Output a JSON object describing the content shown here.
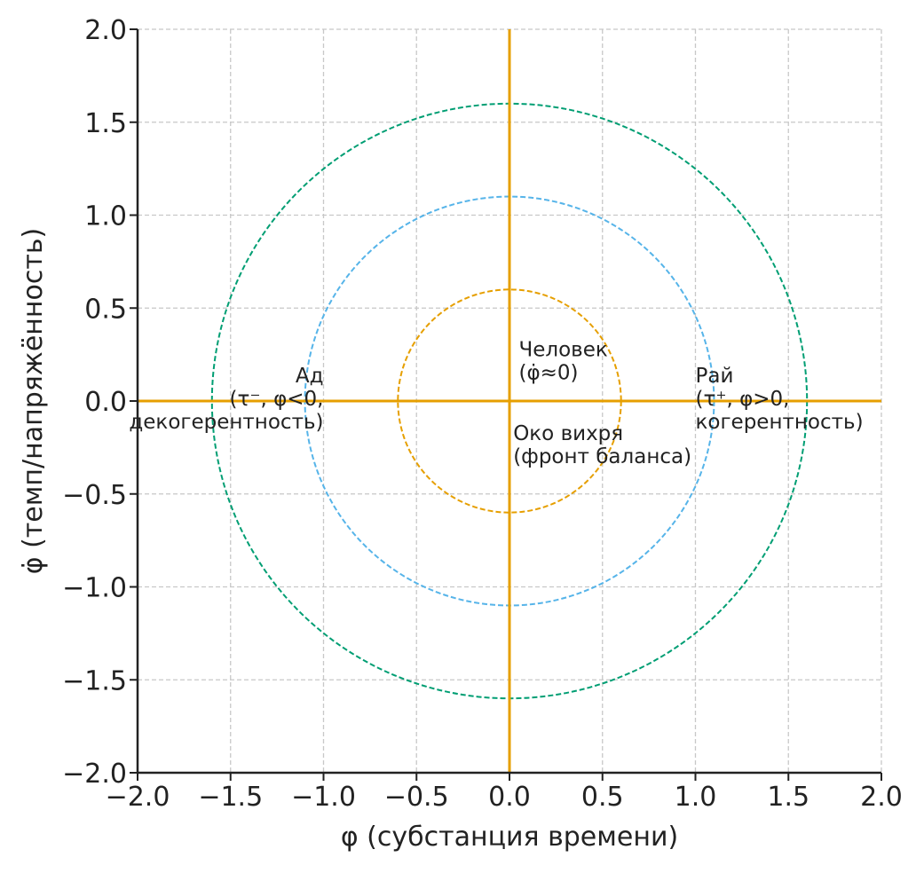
{
  "chart_data": {
    "type": "line",
    "title": "",
    "xlabel": "φ (субстанция времени)",
    "ylabel": "φ̇ (темп/напряжённость)",
    "xlim": [
      -2.0,
      2.0
    ],
    "ylim": [
      -2.0,
      2.0
    ],
    "grid": true,
    "xticks": [
      "−2.0",
      "−1.5",
      "−1.0",
      "−0.5",
      "0.0",
      "0.5",
      "1.0",
      "1.5",
      "2.0"
    ],
    "yticks": [
      "−2.0",
      "−1.5",
      "−1.0",
      "−0.5",
      "0.0",
      "0.5",
      "1.0",
      "1.5",
      "2.0"
    ],
    "tick_values": [
      -2.0,
      -1.5,
      -1.0,
      -0.5,
      0.0,
      0.5,
      1.0,
      1.5,
      2.0
    ],
    "axis_lines": {
      "color": "#E69F00",
      "x": 0,
      "y": 0
    },
    "circles": [
      {
        "name": "inner",
        "radius": 0.6,
        "color": "#E69F00",
        "style": "dashed"
      },
      {
        "name": "middle",
        "radius": 1.1,
        "color": "#56B4E9",
        "style": "dashed"
      },
      {
        "name": "outer",
        "radius": 1.6,
        "color": "#009E73",
        "style": "dashed"
      }
    ],
    "annotations": [
      {
        "name": "hell",
        "x": -1.0,
        "y": 0.1,
        "anchor": "end",
        "lines": [
          "Ад",
          "(τ⁻, φ<0,",
          "декогерентность)"
        ]
      },
      {
        "name": "paradise",
        "x": 1.0,
        "y": 0.1,
        "anchor": "start",
        "lines": [
          "Рай",
          "(τ⁺, φ>0,",
          "когерентность)"
        ]
      },
      {
        "name": "human",
        "x": 0.05,
        "y": 0.24,
        "anchor": "start",
        "lines": [
          "Человек",
          "(φ̇≈0)"
        ]
      },
      {
        "name": "vortex-eye",
        "x": 0.02,
        "y": -0.21,
        "anchor": "start",
        "lines": [
          "Око вихря",
          "(фронт баланса)"
        ]
      }
    ]
  }
}
